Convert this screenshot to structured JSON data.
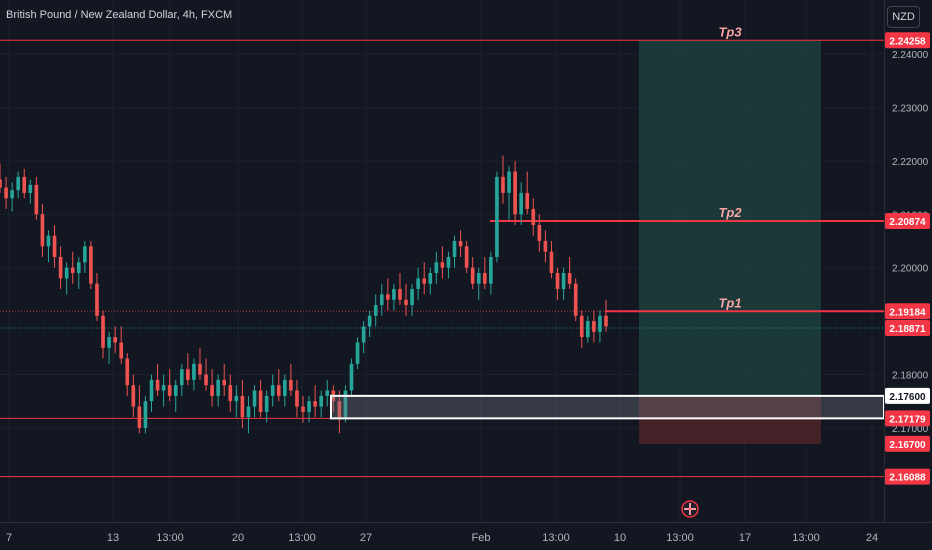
{
  "chart_title": "British Pound / New Zealand Dollar, 4h, FXCM",
  "currency_button": "NZD",
  "colors": {
    "background": "#131722",
    "bull": "#26a69a",
    "bear": "#ef5350",
    "level_line": "#f23645",
    "tp_label": "#f7a5a5",
    "target_zone": "#1d3f3c",
    "stop_zone": "#4a2228",
    "range_box": "#ffffff"
  },
  "chart_data": {
    "type": "candlestick",
    "symbol": "GBPNZD",
    "timeframe": "4h",
    "x_ticks": [
      "7",
      "13",
      "13:00",
      "20",
      "13:00",
      "27",
      "Feb",
      "13:00",
      "10",
      "13:00",
      "17",
      "13:00",
      "24"
    ],
    "y_ticks": [
      "2.24000",
      "2.23000",
      "2.22000",
      "2.21000",
      "2.20000",
      "2.18000",
      "2.17000"
    ],
    "ylim": [
      2.158,
      2.246
    ],
    "price_labels": [
      {
        "value": "2.24258",
        "style": "red"
      },
      {
        "value": "2.20874",
        "style": "red"
      },
      {
        "value": "2.19184",
        "style": "red"
      },
      {
        "value": "2.18871",
        "style": "red"
      },
      {
        "value": "2.17600",
        "style": "white"
      },
      {
        "value": "2.17179",
        "style": "red"
      },
      {
        "value": "2.16700",
        "style": "red"
      },
      {
        "value": "2.16088",
        "style": "red"
      }
    ],
    "level_lines": [
      {
        "price": 2.24258,
        "style": "full"
      },
      {
        "price": 2.16088,
        "style": "full"
      },
      {
        "price": 2.17179,
        "style": "partial"
      },
      {
        "price": 2.19184,
        "style": "dotted"
      },
      {
        "price": 2.18871,
        "style": "dotted"
      }
    ],
    "targets": [
      {
        "label": "Tp3",
        "price": 2.24258
      },
      {
        "label": "Tp2",
        "price": 2.20874
      },
      {
        "label": "Tp1",
        "price": 2.19184
      }
    ],
    "position": {
      "entry": 2.176,
      "stop": 2.167,
      "target": 2.24258
    },
    "range_box": {
      "top": 2.176,
      "bottom": 2.17179
    },
    "candles": [
      [
        2.2165,
        2.2195,
        2.214,
        2.215
      ],
      [
        2.215,
        2.217,
        2.211,
        2.213
      ],
      [
        2.213,
        2.216,
        2.2105,
        2.2145
      ],
      [
        2.2145,
        2.218,
        2.213,
        2.217
      ],
      [
        2.217,
        2.2185,
        2.213,
        2.214
      ],
      [
        2.214,
        2.2165,
        2.212,
        2.2155
      ],
      [
        2.2155,
        2.217,
        2.209,
        2.21
      ],
      [
        2.21,
        2.212,
        2.202,
        2.204
      ],
      [
        2.204,
        2.207,
        2.201,
        2.206
      ],
      [
        2.206,
        2.208,
        2.2,
        2.202
      ],
      [
        2.202,
        2.204,
        2.196,
        2.198
      ],
      [
        2.198,
        2.201,
        2.195,
        2.2
      ],
      [
        2.2,
        2.203,
        2.197,
        2.199
      ],
      [
        2.199,
        2.202,
        2.196,
        2.201
      ],
      [
        2.201,
        2.205,
        2.199,
        2.204
      ],
      [
        2.204,
        2.205,
        2.196,
        2.197
      ],
      [
        2.197,
        2.199,
        2.19,
        2.191
      ],
      [
        2.191,
        2.192,
        2.183,
        2.185
      ],
      [
        2.185,
        2.188,
        2.182,
        2.187
      ],
      [
        2.187,
        2.189,
        2.184,
        2.186
      ],
      [
        2.186,
        2.189,
        2.182,
        2.183
      ],
      [
        2.183,
        2.184,
        2.176,
        2.178
      ],
      [
        2.178,
        2.18,
        2.172,
        2.174
      ],
      [
        2.174,
        2.178,
        2.169,
        2.17
      ],
      [
        2.17,
        2.176,
        2.169,
        2.175
      ],
      [
        2.175,
        2.18,
        2.173,
        2.179
      ],
      [
        2.179,
        2.182,
        2.176,
        2.177
      ],
      [
        2.177,
        2.18,
        2.174,
        2.178
      ],
      [
        2.178,
        2.181,
        2.175,
        2.176
      ],
      [
        2.176,
        2.179,
        2.173,
        2.178
      ],
      [
        2.178,
        2.182,
        2.176,
        2.181
      ],
      [
        2.181,
        2.184,
        2.178,
        2.179
      ],
      [
        2.179,
        2.183,
        2.177,
        2.182
      ],
      [
        2.182,
        2.185,
        2.179,
        2.18
      ],
      [
        2.18,
        2.183,
        2.177,
        2.178
      ],
      [
        2.178,
        2.181,
        2.174,
        2.176
      ],
      [
        2.176,
        2.18,
        2.174,
        2.179
      ],
      [
        2.179,
        2.182,
        2.176,
        2.178
      ],
      [
        2.178,
        2.18,
        2.173,
        2.175
      ],
      [
        2.175,
        2.178,
        2.172,
        2.176
      ],
      [
        2.176,
        2.179,
        2.17,
        2.172
      ],
      [
        2.172,
        2.176,
        2.169,
        2.174
      ],
      [
        2.174,
        2.178,
        2.172,
        2.177
      ],
      [
        2.177,
        2.179,
        2.172,
        2.173
      ],
      [
        2.173,
        2.177,
        2.171,
        2.176
      ],
      [
        2.176,
        2.18,
        2.174,
        2.178
      ],
      [
        2.178,
        2.181,
        2.175,
        2.176
      ],
      [
        2.176,
        2.18,
        2.174,
        2.179
      ],
      [
        2.179,
        2.182,
        2.176,
        2.177
      ],
      [
        2.177,
        2.179,
        2.172,
        2.174
      ],
      [
        2.174,
        2.176,
        2.171,
        2.173
      ],
      [
        2.173,
        2.176,
        2.171,
        2.175
      ],
      [
        2.175,
        2.178,
        2.172,
        2.174
      ],
      [
        2.174,
        2.177,
        2.172,
        2.176
      ],
      [
        2.176,
        2.179,
        2.174,
        2.177
      ],
      [
        2.177,
        2.178,
        2.173,
        2.175
      ],
      [
        2.175,
        2.177,
        2.169,
        2.172
      ],
      [
        2.172,
        2.178,
        2.171,
        2.177
      ],
      [
        2.177,
        2.183,
        2.176,
        2.182
      ],
      [
        2.182,
        2.187,
        2.181,
        2.186
      ],
      [
        2.186,
        2.19,
        2.184,
        2.189
      ],
      [
        2.189,
        2.192,
        2.187,
        2.191
      ],
      [
        2.191,
        2.195,
        2.189,
        2.193
      ],
      [
        2.193,
        2.197,
        2.191,
        2.195
      ],
      [
        2.195,
        2.198,
        2.192,
        2.194
      ],
      [
        2.194,
        2.197,
        2.192,
        2.196
      ],
      [
        2.196,
        2.199,
        2.193,
        2.194
      ],
      [
        2.194,
        2.197,
        2.191,
        2.193
      ],
      [
        2.193,
        2.197,
        2.191,
        2.196
      ],
      [
        2.196,
        2.2,
        2.194,
        2.198
      ],
      [
        2.198,
        2.201,
        2.195,
        2.197
      ],
      [
        2.197,
        2.2,
        2.195,
        2.199
      ],
      [
        2.199,
        2.203,
        2.197,
        2.201
      ],
      [
        2.201,
        2.204,
        2.198,
        2.2
      ],
      [
        2.2,
        2.203,
        2.198,
        2.202
      ],
      [
        2.202,
        2.206,
        2.2,
        2.205
      ],
      [
        2.205,
        2.207,
        2.202,
        2.204
      ],
      [
        2.204,
        2.205,
        2.199,
        2.2
      ],
      [
        2.2,
        2.202,
        2.196,
        2.197
      ],
      [
        2.197,
        2.2,
        2.194,
        2.199
      ],
      [
        2.199,
        2.202,
        2.196,
        2.197
      ],
      [
        2.197,
        2.203,
        2.195,
        2.202
      ],
      [
        2.202,
        2.218,
        2.201,
        2.217
      ],
      [
        2.217,
        2.221,
        2.212,
        2.214
      ],
      [
        2.214,
        2.219,
        2.209,
        2.218
      ],
      [
        2.218,
        2.22,
        2.208,
        2.21
      ],
      [
        2.21,
        2.216,
        2.208,
        2.214
      ],
      [
        2.214,
        2.218,
        2.21,
        2.211
      ],
      [
        2.211,
        2.213,
        2.206,
        2.208
      ],
      [
        2.208,
        2.21,
        2.203,
        2.205
      ],
      [
        2.205,
        2.207,
        2.201,
        2.203
      ],
      [
        2.203,
        2.205,
        2.198,
        2.199
      ],
      [
        2.199,
        2.2,
        2.194,
        2.196
      ],
      [
        2.196,
        2.2,
        2.194,
        2.199
      ],
      [
        2.199,
        2.202,
        2.196,
        2.197
      ],
      [
        2.197,
        2.198,
        2.19,
        2.191
      ],
      [
        2.191,
        2.192,
        2.185,
        2.187
      ],
      [
        2.187,
        2.191,
        2.186,
        2.19
      ],
      [
        2.19,
        2.192,
        2.186,
        2.188
      ],
      [
        2.188,
        2.192,
        2.186,
        2.191
      ],
      [
        2.191,
        2.194,
        2.188,
        2.189
      ]
    ]
  }
}
